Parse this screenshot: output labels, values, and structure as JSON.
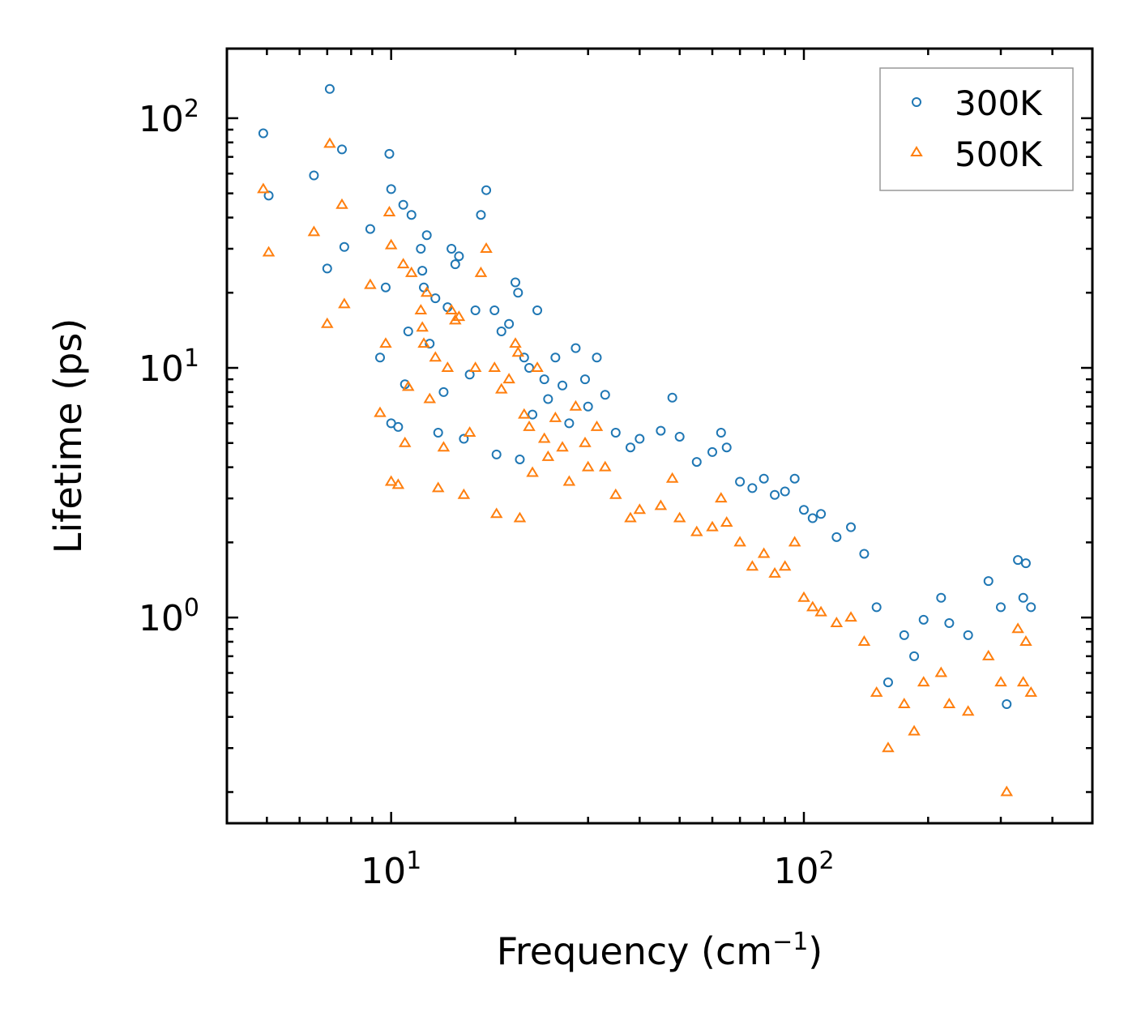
{
  "chart_data": {
    "type": "scatter",
    "title": "",
    "xlabel": "Frequency (cm⁻¹)",
    "xlabel_text": "Frequency (cm",
    "xlabel_sup": "−1",
    "xlabel_close": ")",
    "ylabel": "Lifetime (ps)",
    "xscale": "log",
    "yscale": "log",
    "xlim": [
      4,
      500
    ],
    "ylim": [
      0.15,
      190
    ],
    "xticks": [
      {
        "value": 10,
        "base": "10",
        "exp": "1"
      },
      {
        "value": 100,
        "base": "10",
        "exp": "2"
      }
    ],
    "yticks": [
      {
        "value": 1,
        "base": "10",
        "exp": "0"
      },
      {
        "value": 10,
        "base": "10",
        "exp": "1"
      },
      {
        "value": 100,
        "base": "10",
        "exp": "2"
      }
    ],
    "grid": false,
    "legend_position": "top-right",
    "series": [
      {
        "name": "300K",
        "marker": "circle",
        "color": "#1f77b4",
        "points": [
          [
            4.9,
            87
          ],
          [
            5.05,
            49
          ],
          [
            6.5,
            59
          ],
          [
            7.0,
            25
          ],
          [
            7.1,
            131
          ],
          [
            7.6,
            75
          ],
          [
            7.7,
            30.5
          ],
          [
            8.9,
            36
          ],
          [
            9.4,
            11
          ],
          [
            9.7,
            21
          ],
          [
            9.9,
            72
          ],
          [
            10.0,
            52
          ],
          [
            10.0,
            6.0
          ],
          [
            10.4,
            5.8
          ],
          [
            10.7,
            45
          ],
          [
            10.8,
            8.6
          ],
          [
            11.0,
            14
          ],
          [
            11.2,
            41
          ],
          [
            11.8,
            30
          ],
          [
            11.9,
            24.5
          ],
          [
            12.0,
            21
          ],
          [
            12.2,
            34
          ],
          [
            12.4,
            12.5
          ],
          [
            12.8,
            19
          ],
          [
            13.0,
            5.5
          ],
          [
            13.4,
            8.0
          ],
          [
            13.7,
            17.5
          ],
          [
            14.0,
            30
          ],
          [
            14.3,
            26
          ],
          [
            14.6,
            28
          ],
          [
            15.0,
            5.2
          ],
          [
            15.5,
            9.4
          ],
          [
            16.0,
            17
          ],
          [
            16.5,
            41
          ],
          [
            17.0,
            51.5
          ],
          [
            17.8,
            17
          ],
          [
            18.0,
            4.5
          ],
          [
            18.5,
            14
          ],
          [
            19.3,
            15
          ],
          [
            20.0,
            22
          ],
          [
            20.3,
            20
          ],
          [
            20.5,
            4.3
          ],
          [
            21.0,
            11
          ],
          [
            21.6,
            10
          ],
          [
            22.0,
            6.5
          ],
          [
            22.6,
            17
          ],
          [
            23.5,
            9.0
          ],
          [
            24.0,
            7.5
          ],
          [
            25.0,
            11
          ],
          [
            26.0,
            8.5
          ],
          [
            27.0,
            6.0
          ],
          [
            28.0,
            12
          ],
          [
            29.5,
            9.0
          ],
          [
            30.0,
            7.0
          ],
          [
            31.5,
            11
          ],
          [
            33.0,
            7.8
          ],
          [
            35.0,
            5.5
          ],
          [
            38.0,
            4.8
          ],
          [
            40.0,
            5.2
          ],
          [
            45.0,
            5.6
          ],
          [
            48.0,
            7.6
          ],
          [
            50.0,
            5.3
          ],
          [
            55.0,
            4.2
          ],
          [
            60.0,
            4.6
          ],
          [
            63.0,
            5.5
          ],
          [
            65.0,
            4.8
          ],
          [
            70.0,
            3.5
          ],
          [
            75.0,
            3.3
          ],
          [
            80.0,
            3.6
          ],
          [
            85.0,
            3.1
          ],
          [
            90.0,
            3.2
          ],
          [
            95.0,
            3.6
          ],
          [
            100.0,
            2.7
          ],
          [
            105.0,
            2.5
          ],
          [
            110.0,
            2.6
          ],
          [
            120.0,
            2.1
          ],
          [
            130.0,
            2.3
          ],
          [
            140.0,
            1.8
          ],
          [
            150.0,
            1.1
          ],
          [
            160.0,
            0.55
          ],
          [
            175.0,
            0.85
          ],
          [
            185.0,
            0.7
          ],
          [
            195.0,
            0.98
          ],
          [
            215.0,
            1.2
          ],
          [
            225.0,
            0.95
          ],
          [
            250.0,
            0.85
          ],
          [
            280.0,
            1.4
          ],
          [
            300.0,
            1.1
          ],
          [
            310.0,
            0.45
          ],
          [
            330.0,
            1.7
          ],
          [
            340.0,
            1.2
          ],
          [
            345.0,
            1.65
          ],
          [
            355.0,
            1.1
          ]
        ]
      },
      {
        "name": "500K",
        "marker": "triangle",
        "color": "#ff7f0e",
        "points": [
          [
            4.9,
            52
          ],
          [
            5.05,
            29
          ],
          [
            6.5,
            35
          ],
          [
            7.0,
            15
          ],
          [
            7.1,
            79
          ],
          [
            7.6,
            45
          ],
          [
            7.7,
            18
          ],
          [
            8.9,
            21.5
          ],
          [
            9.4,
            6.6
          ],
          [
            9.7,
            12.5
          ],
          [
            9.9,
            42
          ],
          [
            10.0,
            31
          ],
          [
            10.0,
            3.5
          ],
          [
            10.4,
            3.4
          ],
          [
            10.7,
            26
          ],
          [
            10.8,
            5.0
          ],
          [
            11.0,
            8.4
          ],
          [
            11.2,
            24
          ],
          [
            11.8,
            17
          ],
          [
            11.9,
            14.5
          ],
          [
            12.0,
            12.5
          ],
          [
            12.2,
            20
          ],
          [
            12.4,
            7.5
          ],
          [
            12.8,
            11
          ],
          [
            13.0,
            3.3
          ],
          [
            13.4,
            4.8
          ],
          [
            13.7,
            10
          ],
          [
            14.0,
            17
          ],
          [
            14.3,
            15.5
          ],
          [
            14.6,
            16
          ],
          [
            15.0,
            3.1
          ],
          [
            15.5,
            5.5
          ],
          [
            16.0,
            10
          ],
          [
            16.5,
            24
          ],
          [
            17.0,
            30
          ],
          [
            17.8,
            10
          ],
          [
            18.0,
            2.6
          ],
          [
            18.5,
            8.2
          ],
          [
            19.3,
            9.0
          ],
          [
            20.0,
            12.5
          ],
          [
            20.3,
            11.5
          ],
          [
            20.5,
            2.5
          ],
          [
            21.0,
            6.5
          ],
          [
            21.6,
            5.8
          ],
          [
            22.0,
            3.8
          ],
          [
            22.6,
            10
          ],
          [
            23.5,
            5.2
          ],
          [
            24.0,
            4.4
          ],
          [
            25.0,
            6.3
          ],
          [
            26.0,
            4.8
          ],
          [
            27.0,
            3.5
          ],
          [
            28.0,
            7.0
          ],
          [
            29.5,
            5.0
          ],
          [
            30.0,
            4.0
          ],
          [
            31.5,
            5.8
          ],
          [
            33.0,
            4.0
          ],
          [
            35.0,
            3.1
          ],
          [
            38.0,
            2.5
          ],
          [
            40.0,
            2.7
          ],
          [
            45.0,
            2.8
          ],
          [
            48.0,
            3.6
          ],
          [
            50.0,
            2.5
          ],
          [
            55.0,
            2.2
          ],
          [
            60.0,
            2.3
          ],
          [
            63.0,
            3.0
          ],
          [
            65.0,
            2.4
          ],
          [
            70.0,
            2.0
          ],
          [
            75.0,
            1.6
          ],
          [
            80.0,
            1.8
          ],
          [
            85.0,
            1.5
          ],
          [
            90.0,
            1.6
          ],
          [
            95.0,
            2.0
          ],
          [
            100.0,
            1.2
          ],
          [
            105.0,
            1.1
          ],
          [
            110.0,
            1.05
          ],
          [
            120.0,
            0.95
          ],
          [
            130.0,
            1.0
          ],
          [
            140.0,
            0.8
          ],
          [
            150.0,
            0.5
          ],
          [
            160.0,
            0.3
          ],
          [
            175.0,
            0.45
          ],
          [
            185.0,
            0.35
          ],
          [
            195.0,
            0.55
          ],
          [
            215.0,
            0.6
          ],
          [
            225.0,
            0.45
          ],
          [
            250.0,
            0.42
          ],
          [
            280.0,
            0.7
          ],
          [
            300.0,
            0.55
          ],
          [
            310.0,
            0.2
          ],
          [
            330.0,
            0.9
          ],
          [
            340.0,
            0.55
          ],
          [
            345.0,
            0.8
          ],
          [
            355.0,
            0.5
          ]
        ]
      }
    ]
  }
}
